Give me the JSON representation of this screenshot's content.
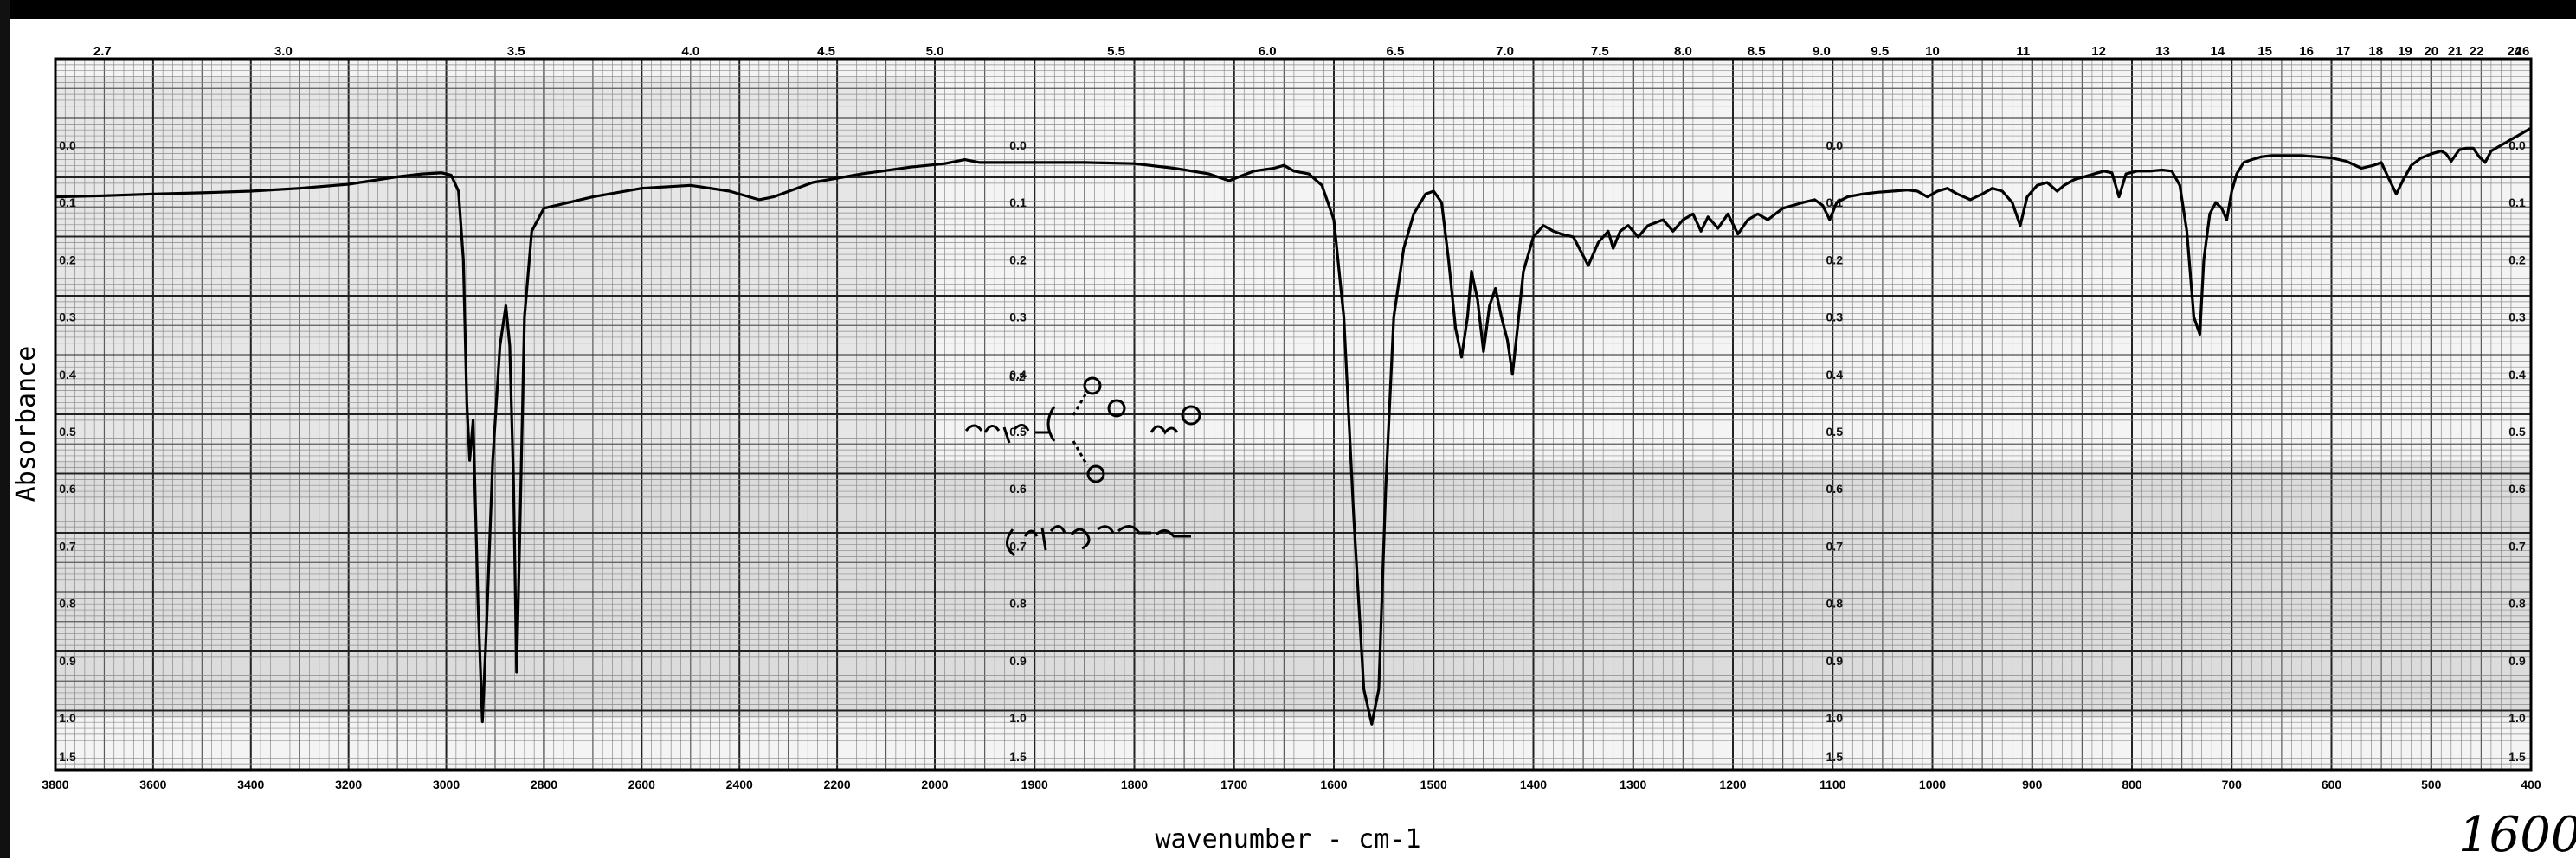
{
  "chart_data": {
    "type": "line",
    "title": "",
    "xlabel": "wavenumber  - cm-1",
    "ylabel": "Absorbance",
    "xlim": [
      3800,
      400
    ],
    "ylim": [
      0.0,
      1.5
    ],
    "grid": true,
    "wavenumber_ticks": [
      3800,
      3600,
      3400,
      3200,
      3000,
      2800,
      2600,
      2400,
      2200,
      2000,
      1900,
      1800,
      1700,
      1600,
      1500,
      1400,
      1300,
      1200,
      1100,
      1000,
      900,
      800,
      700,
      600,
      500,
      400
    ],
    "wavelength_ticks": [
      "2.7",
      "3.0",
      "3.5",
      "4.0",
      "4.5",
      "5.0",
      "5.5",
      "6.0",
      "6.5",
      "7.0",
      "7.5",
      "8.0",
      "8.5",
      "9.0",
      "9.5",
      "10",
      "11",
      "12",
      "13",
      "14",
      "15",
      "16",
      "17",
      "18",
      "19",
      "20",
      "21",
      "22",
      "24",
      "26"
    ],
    "absorbance_ticks": [
      "0.0",
      "0.1",
      "0.2",
      "0.3",
      "0.4",
      "0.5",
      "0.6",
      "0.7",
      "0.8",
      "0.9",
      "1.0",
      "1.5"
    ],
    "series": [
      {
        "points": [
          [
            3800,
            0.09
          ],
          [
            3700,
            0.088
          ],
          [
            3600,
            0.085
          ],
          [
            3500,
            0.083
          ],
          [
            3400,
            0.08
          ],
          [
            3300,
            0.075
          ],
          [
            3200,
            0.068
          ],
          [
            3100,
            0.055
          ],
          [
            3050,
            0.05
          ],
          [
            3010,
            0.048
          ],
          [
            2990,
            0.052
          ],
          [
            2975,
            0.08
          ],
          [
            2965,
            0.2
          ],
          [
            2958,
            0.45
          ],
          [
            2952,
            0.55
          ],
          [
            2945,
            0.48
          ],
          [
            2935,
            0.8
          ],
          [
            2926,
            1.05
          ],
          [
            2918,
            0.85
          ],
          [
            2905,
            0.55
          ],
          [
            2890,
            0.35
          ],
          [
            2878,
            0.28
          ],
          [
            2870,
            0.35
          ],
          [
            2862,
            0.6
          ],
          [
            2856,
            0.92
          ],
          [
            2850,
            0.7
          ],
          [
            2840,
            0.3
          ],
          [
            2825,
            0.15
          ],
          [
            2800,
            0.11
          ],
          [
            2700,
            0.09
          ],
          [
            2600,
            0.075
          ],
          [
            2500,
            0.07
          ],
          [
            2420,
            0.08
          ],
          [
            2360,
            0.095
          ],
          [
            2330,
            0.09
          ],
          [
            2250,
            0.065
          ],
          [
            2150,
            0.05
          ],
          [
            2050,
            0.038
          ],
          [
            1990,
            0.032
          ],
          [
            1970,
            0.025
          ],
          [
            1955,
            0.03
          ],
          [
            1900,
            0.03
          ],
          [
            1850,
            0.03
          ],
          [
            1800,
            0.032
          ],
          [
            1760,
            0.04
          ],
          [
            1725,
            0.05
          ],
          [
            1705,
            0.062
          ],
          [
            1695,
            0.055
          ],
          [
            1680,
            0.045
          ],
          [
            1660,
            0.04
          ],
          [
            1650,
            0.035
          ],
          [
            1640,
            0.045
          ],
          [
            1625,
            0.05
          ],
          [
            1612,
            0.07
          ],
          [
            1600,
            0.13
          ],
          [
            1590,
            0.3
          ],
          [
            1580,
            0.65
          ],
          [
            1570,
            0.95
          ],
          [
            1562,
            1.08
          ],
          [
            1555,
            0.95
          ],
          [
            1548,
            0.6
          ],
          [
            1540,
            0.3
          ],
          [
            1530,
            0.18
          ],
          [
            1520,
            0.12
          ],
          [
            1508,
            0.085
          ],
          [
            1500,
            0.08
          ],
          [
            1492,
            0.1
          ],
          [
            1485,
            0.2
          ],
          [
            1478,
            0.32
          ],
          [
            1472,
            0.37
          ],
          [
            1466,
            0.3
          ],
          [
            1462,
            0.22
          ],
          [
            1456,
            0.27
          ],
          [
            1450,
            0.36
          ],
          [
            1444,
            0.28
          ],
          [
            1438,
            0.25
          ],
          [
            1432,
            0.3
          ],
          [
            1426,
            0.34
          ],
          [
            1421,
            0.4
          ],
          [
            1416,
            0.32
          ],
          [
            1410,
            0.22
          ],
          [
            1400,
            0.16
          ],
          [
            1390,
            0.14
          ],
          [
            1380,
            0.15
          ],
          [
            1372,
            0.155
          ],
          [
            1360,
            0.16
          ],
          [
            1345,
            0.21
          ],
          [
            1335,
            0.17
          ],
          [
            1325,
            0.15
          ],
          [
            1320,
            0.18
          ],
          [
            1313,
            0.15
          ],
          [
            1305,
            0.14
          ],
          [
            1295,
            0.16
          ],
          [
            1285,
            0.14
          ],
          [
            1270,
            0.13
          ],
          [
            1260,
            0.15
          ],
          [
            1250,
            0.13
          ],
          [
            1240,
            0.12
          ],
          [
            1232,
            0.15
          ],
          [
            1225,
            0.125
          ],
          [
            1215,
            0.145
          ],
          [
            1205,
            0.12
          ],
          [
            1195,
            0.155
          ],
          [
            1185,
            0.13
          ],
          [
            1175,
            0.12
          ],
          [
            1165,
            0.13
          ],
          [
            1150,
            0.11
          ],
          [
            1140,
            0.105
          ],
          [
            1130,
            0.1
          ],
          [
            1118,
            0.095
          ],
          [
            1110,
            0.105
          ],
          [
            1103,
            0.13
          ],
          [
            1096,
            0.1
          ],
          [
            1085,
            0.09
          ],
          [
            1070,
            0.085
          ],
          [
            1055,
            0.082
          ],
          [
            1040,
            0.08
          ],
          [
            1025,
            0.078
          ],
          [
            1015,
            0.08
          ],
          [
            1005,
            0.09
          ],
          [
            995,
            0.08
          ],
          [
            985,
            0.075
          ],
          [
            975,
            0.085
          ],
          [
            962,
            0.095
          ],
          [
            950,
            0.085
          ],
          [
            940,
            0.075
          ],
          [
            930,
            0.08
          ],
          [
            920,
            0.1
          ],
          [
            912,
            0.14
          ],
          [
            905,
            0.09
          ],
          [
            895,
            0.07
          ],
          [
            885,
            0.065
          ],
          [
            875,
            0.08
          ],
          [
            868,
            0.07
          ],
          [
            858,
            0.06
          ],
          [
            848,
            0.055
          ],
          [
            838,
            0.05
          ],
          [
            828,
            0.045
          ],
          [
            820,
            0.048
          ],
          [
            813,
            0.09
          ],
          [
            806,
            0.05
          ],
          [
            795,
            0.045
          ],
          [
            782,
            0.045
          ],
          [
            770,
            0.043
          ],
          [
            760,
            0.045
          ],
          [
            752,
            0.07
          ],
          [
            745,
            0.15
          ],
          [
            738,
            0.3
          ],
          [
            732,
            0.33
          ],
          [
            728,
            0.2
          ],
          [
            722,
            0.12
          ],
          [
            716,
            0.1
          ],
          [
            710,
            0.11
          ],
          [
            705,
            0.13
          ],
          [
            700,
            0.08
          ],
          [
            695,
            0.05
          ],
          [
            688,
            0.03
          ],
          [
            680,
            0.025
          ],
          [
            670,
            0.02
          ],
          [
            660,
            0.018
          ],
          [
            645,
            0.018
          ],
          [
            630,
            0.018
          ],
          [
            615,
            0.02
          ],
          [
            600,
            0.022
          ],
          [
            585,
            0.028
          ],
          [
            570,
            0.04
          ],
          [
            558,
            0.035
          ],
          [
            550,
            0.03
          ],
          [
            542,
            0.06
          ],
          [
            535,
            0.085
          ],
          [
            528,
            0.06
          ],
          [
            520,
            0.035
          ],
          [
            510,
            0.022
          ],
          [
            500,
            0.015
          ],
          [
            490,
            0.01
          ],
          [
            485,
            0.015
          ],
          [
            480,
            0.028
          ],
          [
            472,
            0.008
          ],
          [
            465,
            0.005
          ],
          [
            458,
            0.005
          ],
          [
            452,
            0.02
          ],
          [
            446,
            0.03
          ],
          [
            440,
            0.01
          ],
          [
            430,
            0.0
          ],
          [
            420,
            -0.01
          ],
          [
            410,
            -0.02
          ],
          [
            400,
            -0.03
          ]
        ]
      }
    ]
  },
  "annotation": {
    "handwritten_text": "1600"
  }
}
